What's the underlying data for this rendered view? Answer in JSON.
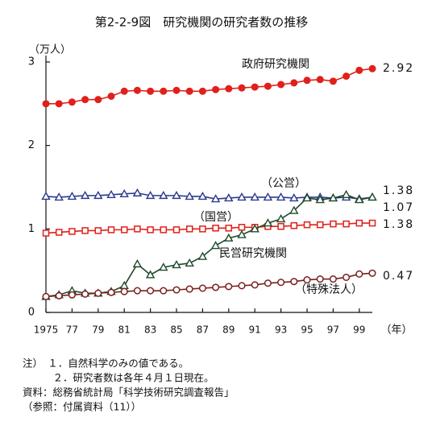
{
  "chart_data": {
    "type": "line",
    "title": "第2-2-9図　研究機関の研究者数の推移",
    "y_label": "（万人）",
    "x_label": "（年）",
    "x": [
      1975,
      1976,
      1977,
      1978,
      1979,
      1980,
      1981,
      1982,
      1983,
      1984,
      1985,
      1986,
      1987,
      1988,
      1989,
      1990,
      1991,
      1992,
      1993,
      1994,
      1995,
      1996,
      1997,
      1998,
      1999,
      2000
    ],
    "xlim": [
      1975,
      2000
    ],
    "xticks": [
      1975,
      {
        "value": 1977,
        "label": "77"
      },
      {
        "value": 1979,
        "label": "79"
      },
      {
        "value": 1981,
        "label": "81"
      },
      {
        "value": 1983,
        "label": "83"
      },
      {
        "value": 1985,
        "label": "85"
      },
      {
        "value": 1987,
        "label": "87"
      },
      {
        "value": 1989,
        "label": "89"
      },
      {
        "value": 1991,
        "label": "91"
      },
      {
        "value": 1993,
        "label": "93"
      },
      {
        "value": 1995,
        "label": "95"
      },
      {
        "value": 1997,
        "label": "97"
      },
      {
        "value": 1999,
        "label": "99"
      }
    ],
    "ylim": [
      0,
      3
    ],
    "yticks": [
      0,
      1,
      2,
      3
    ],
    "series": [
      {
        "name": "政府研究機関",
        "color": "#e0201a",
        "marker": "circle-filled",
        "values": [
          2.5,
          2.5,
          2.52,
          2.55,
          2.55,
          2.59,
          2.65,
          2.66,
          2.65,
          2.65,
          2.66,
          2.65,
          2.65,
          2.67,
          2.68,
          2.69,
          2.7,
          2.71,
          2.73,
          2.75,
          2.78,
          2.79,
          2.77,
          2.83,
          2.9,
          2.92
        ]
      },
      {
        "name": "（公営）",
        "color": "#2a3a8c",
        "marker": "triangle",
        "values": [
          1.39,
          1.38,
          1.39,
          1.4,
          1.4,
          1.41,
          1.42,
          1.43,
          1.4,
          1.4,
          1.4,
          1.39,
          1.39,
          1.36,
          1.37,
          1.38,
          1.38,
          1.38,
          1.38,
          1.37,
          1.38,
          1.38,
          1.37,
          1.38,
          1.36,
          1.38
        ]
      },
      {
        "name": "（国営）",
        "color": "#e0201a",
        "marker": "square",
        "values": [
          0.95,
          0.96,
          0.97,
          0.98,
          0.98,
          0.99,
          0.99,
          1.0,
          0.99,
          0.99,
          0.99,
          1.0,
          1.0,
          1.01,
          1.01,
          1.02,
          1.02,
          1.03,
          1.03,
          1.04,
          1.05,
          1.05,
          1.06,
          1.06,
          1.07,
          1.07
        ]
      },
      {
        "name": "民営研究機関",
        "color": "#1f4a2a",
        "marker": "triangle",
        "values": [
          0.19,
          0.21,
          0.26,
          0.23,
          0.23,
          0.25,
          0.32,
          0.58,
          0.45,
          0.54,
          0.57,
          0.59,
          0.67,
          0.8,
          0.89,
          0.93,
          1.0,
          1.07,
          1.12,
          1.22,
          1.37,
          1.35,
          1.37,
          1.41,
          1.35,
          1.38
        ]
      },
      {
        "name": "（特殊法人）",
        "color": "#7a1f1f",
        "marker": "circle",
        "values": [
          0.19,
          0.2,
          0.21,
          0.22,
          0.23,
          0.24,
          0.25,
          0.26,
          0.26,
          0.26,
          0.27,
          0.28,
          0.29,
          0.3,
          0.31,
          0.32,
          0.33,
          0.35,
          0.36,
          0.37,
          0.39,
          0.4,
          0.4,
          0.42,
          0.46,
          0.47
        ]
      }
    ],
    "notes": [
      "注）　１．自然科学のみの値である。",
      "　　　２．研究者数は各年４月１日現在。",
      "資料：総務省統計局「科学技術研究調査報告」",
      "（参照：付属資料（11））"
    ]
  }
}
